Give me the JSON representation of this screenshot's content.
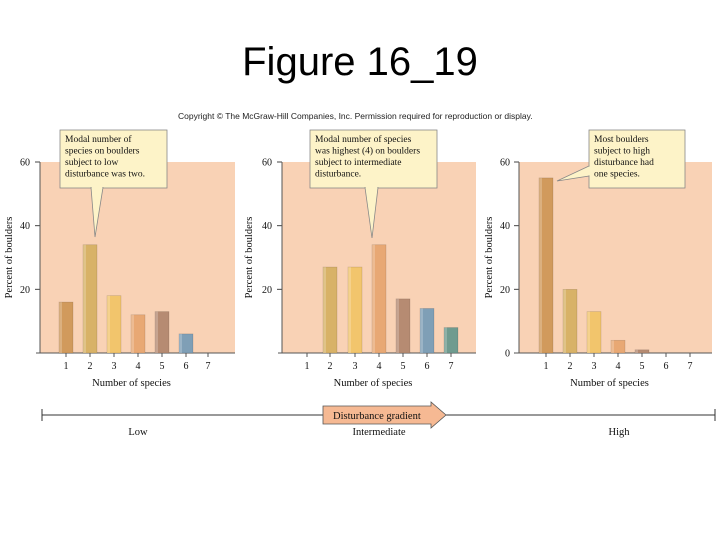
{
  "title": "Figure 16_19",
  "copyright": "Copyright © The McGraw-Hill Companies, Inc. Permission required for reproduction or display.",
  "colors": {
    "panel_bg": "#f9d2b5",
    "callout_bg": "#fdf3c8",
    "bar_colors": [
      "#d19a5c",
      "#d8b267",
      "#f2c56c",
      "#e8a874",
      "#b68b72",
      "#7f9fb6",
      "#6f9b8f"
    ]
  },
  "chart_data": [
    {
      "type": "bar",
      "categories": [
        "1",
        "2",
        "3",
        "4",
        "5",
        "6",
        "7"
      ],
      "values": [
        16,
        34,
        18,
        12,
        13,
        6,
        0
      ],
      "xlabel": "Number of species",
      "ylabel": "Percent of boulders",
      "ylim": [
        0,
        60
      ],
      "yticks": [
        "20",
        "40",
        "60"
      ],
      "annotation": [
        "Modal number of",
        "species on boulders",
        "subject to low",
        "disturbance was two."
      ],
      "annotation_target_category": "2"
    },
    {
      "type": "bar",
      "categories": [
        "1",
        "2",
        "3",
        "4",
        "5",
        "6",
        "7"
      ],
      "values": [
        0,
        27,
        27,
        34,
        17,
        14,
        8
      ],
      "xlabel": "Number of species",
      "ylabel": "Percent of boulders",
      "ylim": [
        0,
        60
      ],
      "yticks": [
        "20",
        "40",
        "60"
      ],
      "annotation": [
        "Modal number of species",
        "was highest (4) on boulders",
        "subject to intermediate",
        "disturbance."
      ],
      "annotation_target_category": "4"
    },
    {
      "type": "bar",
      "categories": [
        "1",
        "2",
        "3",
        "4",
        "5",
        "6",
        "7"
      ],
      "values": [
        55,
        20,
        13,
        4,
        1,
        0,
        0
      ],
      "xlabel": "Number of species",
      "ylabel": "Percent of boulders",
      "ylim": [
        0,
        60
      ],
      "yticks": [
        "0",
        "20",
        "40",
        "60"
      ],
      "annotation": [
        "Most boulders",
        "subject to high",
        "disturbance had",
        "one species."
      ],
      "annotation_target_category": "1"
    }
  ],
  "gradient": {
    "label": "Disturbance gradient",
    "low": "Low",
    "intermediate": "Intermediate",
    "high": "High"
  }
}
